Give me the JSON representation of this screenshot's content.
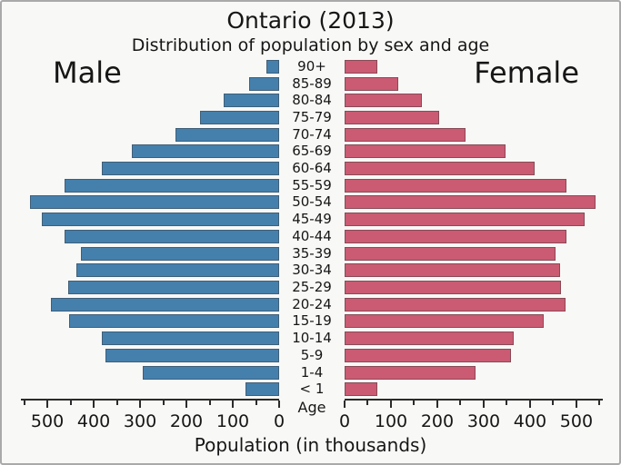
{
  "chart_data": {
    "type": "bar",
    "variant": "population_pyramid",
    "title": "Ontario (2013)",
    "subtitle": "Distribution of population by sex and age",
    "xlabel": "Population (in thousands)",
    "age_axis_label": "Age",
    "unit": "thousands",
    "categories": [
      "90+",
      "85-89",
      "80-84",
      "75-79",
      "70-74",
      "65-69",
      "60-64",
      "55-59",
      "50-54",
      "45-49",
      "40-44",
      "35-39",
      "30-34",
      "25-29",
      "20-24",
      "15-19",
      "10-14",
      "5-9",
      "1-4",
      "< 1"
    ],
    "series": [
      {
        "name": "Male",
        "side": "left",
        "color": "#4580ad",
        "values": [
          28,
          64,
          119,
          170,
          223,
          317,
          382,
          462,
          537,
          511,
          462,
          428,
          437,
          456,
          492,
          454,
          382,
          374,
          294,
          72
        ]
      },
      {
        "name": "Female",
        "side": "right",
        "color": "#ca5b72",
        "values": [
          71,
          116,
          167,
          204,
          261,
          347,
          410,
          479,
          541,
          518,
          478,
          455,
          464,
          466,
          477,
          429,
          365,
          359,
          282,
          70
        ]
      }
    ],
    "axis": {
      "max": 557,
      "major_ticks": [
        0,
        100,
        200,
        300,
        400,
        500
      ],
      "minor_step": 50,
      "minor_max": 550,
      "left_tick_labels": [
        "500",
        "400",
        "300",
        "200",
        "100",
        "0"
      ],
      "right_tick_labels": [
        "0",
        "100",
        "200",
        "300",
        "400",
        "500"
      ]
    },
    "legend_position": "none",
    "grid": false,
    "colors": {
      "male": "#4580ad",
      "female": "#ca5b72",
      "axis": "#2b2b2b",
      "background": "#f8f8f6",
      "frame_border": "#a9a9a9"
    }
  }
}
